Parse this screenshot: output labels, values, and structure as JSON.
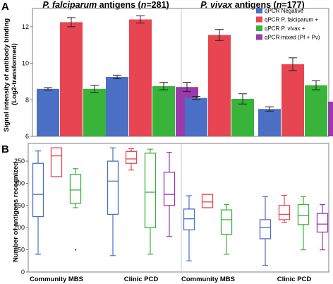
{
  "chart_data": [
    {
      "panel": "A",
      "type": "bar",
      "ylabel_line1": "Signal intensity of antibody binding",
      "ylabel_line2": "(Log2-transformed)",
      "ylim": [
        6,
        13
      ],
      "yticks": [
        6,
        8,
        10,
        12
      ],
      "group_titles": [
        {
          "italic": "P. falciparum",
          "normal": " antigens (",
          "n_italic": "n",
          "rest": "=281)"
        },
        {
          "italic": "P. vivax",
          "normal": " antigens (",
          "n_italic": "n",
          "rest": "=177)"
        }
      ],
      "legend": [
        {
          "label": "qPCR Negative",
          "color": "#4a6fc4"
        },
        {
          "label": "qPCR P. falciparum +",
          "color": "#e84552"
        },
        {
          "label": "qPCR P. vivax +",
          "color": "#39b43a"
        },
        {
          "label": "qPCR mixed (Pf + Pv)",
          "color": "#9a3aad"
        }
      ],
      "groups": [
        {
          "name": "Community MBS",
          "antigen": "P. falciparum",
          "values": [
            8.6,
            12.25,
            8.6
          ],
          "errors": [
            0.07,
            0.25,
            0.2
          ]
        },
        {
          "name": "Clinic PCD",
          "antigen": "P. falciparum",
          "values": [
            9.25,
            12.4,
            8.75,
            8.7
          ],
          "errors": [
            0.1,
            0.2,
            0.2,
            0.25
          ]
        },
        {
          "name": "Community MBS",
          "antigen": "P. vivax",
          "values": [
            8.1,
            11.55,
            8.05
          ],
          "errors": [
            0.08,
            0.3,
            0.28
          ]
        },
        {
          "name": "Clinic PCD",
          "antigen": "P. vivax",
          "values": [
            7.5,
            9.95,
            8.8,
            7.9
          ],
          "errors": [
            0.12,
            0.35,
            0.25,
            0.35
          ]
        }
      ]
    },
    {
      "panel": "B",
      "type": "box",
      "ylabel": "Number of antigens recognized",
      "ylim": [
        0,
        290
      ],
      "yticks": [
        0,
        50,
        100,
        150,
        200,
        250
      ],
      "categories": [
        "Community MBS",
        "Clinic PCD",
        "Community MBS",
        "Clinic PCD"
      ],
      "groups": [
        {
          "boxes": [
            {
              "min": 40,
              "q1": 125,
              "median": 175,
              "q3": 245,
              "max": 273
            },
            {
              "min": 215,
              "q1": 215,
              "median": 262,
              "q3": 280,
              "max": 280
            },
            {
              "min": 145,
              "q1": 155,
              "median": 185,
              "q3": 220,
              "max": 233,
              "outliers": [
                50
              ]
            }
          ]
        },
        {
          "boxes": [
            {
              "min": 37,
              "q1": 130,
              "median": 205,
              "q3": 250,
              "max": 280
            },
            {
              "min": 230,
              "q1": 245,
              "median": 255,
              "q3": 272,
              "max": 278
            },
            {
              "min": 40,
              "q1": 100,
              "median": 180,
              "q3": 268,
              "max": 277
            },
            {
              "min": 80,
              "q1": 150,
              "median": 175,
              "q3": 225,
              "max": 270
            }
          ]
        },
        {
          "boxes": [
            {
              "min": 25,
              "q1": 95,
              "median": 120,
              "q3": 142,
              "max": 172
            },
            {
              "min": 145,
              "q1": 145,
              "median": 158,
              "q3": 175,
              "max": 175
            },
            {
              "min": 40,
              "q1": 85,
              "median": 118,
              "q3": 140,
              "max": 152
            }
          ]
        },
        {
          "boxes": [
            {
              "min": 15,
              "q1": 75,
              "median": 100,
              "q3": 118,
              "max": 170
            },
            {
              "min": 112,
              "q1": 118,
              "median": 130,
              "q3": 150,
              "max": 173
            },
            {
              "min": 50,
              "q1": 107,
              "median": 127,
              "q3": 152,
              "max": 170
            },
            {
              "min": 50,
              "q1": 90,
              "median": 108,
              "q3": 132,
              "max": 152
            }
          ]
        }
      ]
    }
  ]
}
